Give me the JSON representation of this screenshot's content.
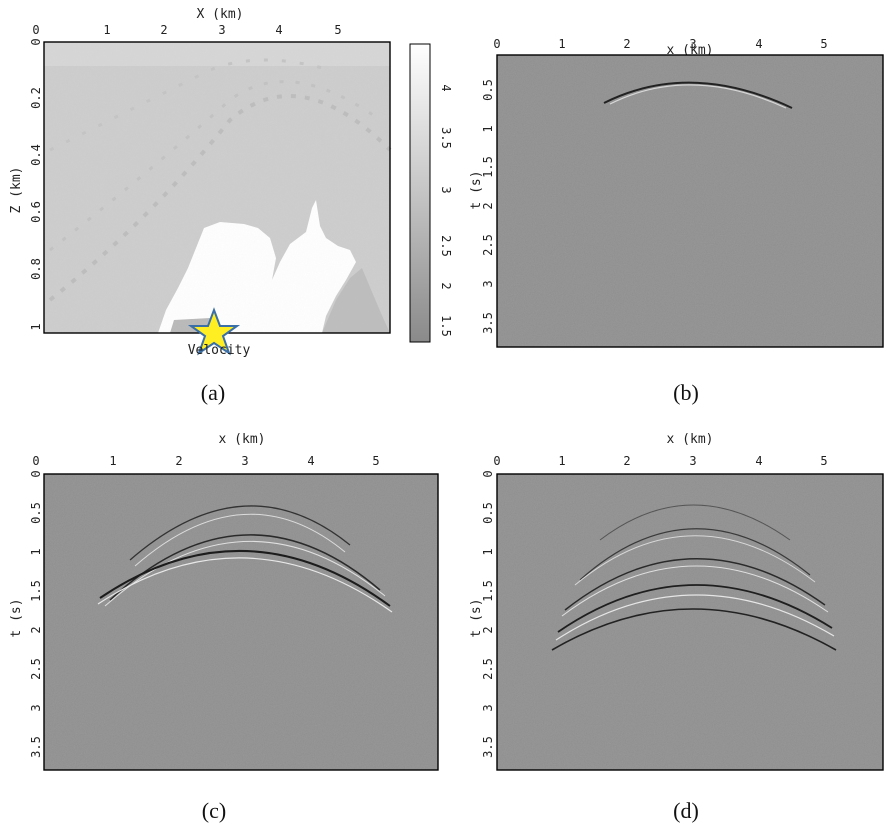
{
  "panels": [
    {
      "id": "a",
      "caption": "(a)",
      "type": "velocity",
      "x_label": "X (km)",
      "y_label": "Z (km)",
      "x_ticks": [
        "0",
        "1",
        "2",
        "3",
        "4",
        "5"
      ],
      "y_ticks": [
        "0",
        "0.2",
        "0.4",
        "0.6",
        "0.8",
        "1"
      ],
      "bottom_label": "Velocity",
      "colorbar_ticks": [
        "1.5",
        "2",
        "2.5",
        "3",
        "3.5",
        "4"
      ],
      "source_marker": {
        "icon": "star-icon",
        "x_km": 2.85,
        "z_km": 1.0,
        "fill": "#ffee22",
        "stroke": "#3a6fa8"
      }
    },
    {
      "id": "b",
      "caption": "(b)",
      "type": "seismogram",
      "x_label": "x (km)",
      "y_label": "t (s)",
      "x_ticks": [
        "0",
        "1",
        "2",
        "3",
        "4",
        "5"
      ],
      "y_ticks": [
        "0.5",
        "1",
        "1.5",
        "2",
        "2.5",
        "3",
        "3.5"
      ]
    },
    {
      "id": "c",
      "caption": "(c)",
      "type": "seismogram",
      "x_label": "x (km)",
      "y_label": "t (s)",
      "x_ticks": [
        "0",
        "1",
        "2",
        "3",
        "4",
        "5"
      ],
      "y_ticks": [
        "0",
        "0.5",
        "1",
        "1.5",
        "2",
        "2.5",
        "3",
        "3.5"
      ]
    },
    {
      "id": "d",
      "caption": "(d)",
      "type": "seismogram",
      "x_label": "x (km)",
      "y_label": "t (s)",
      "x_ticks": [
        "0",
        "1",
        "2",
        "3",
        "4",
        "5"
      ],
      "y_ticks": [
        "0",
        "0.5",
        "1",
        "1.5",
        "2",
        "2.5",
        "3",
        "3.5"
      ]
    }
  ],
  "colors": {
    "velocity_background": "#cdcdcd",
    "seismogram_background": "#8e8e8e",
    "salt_body": "#ffffff"
  }
}
